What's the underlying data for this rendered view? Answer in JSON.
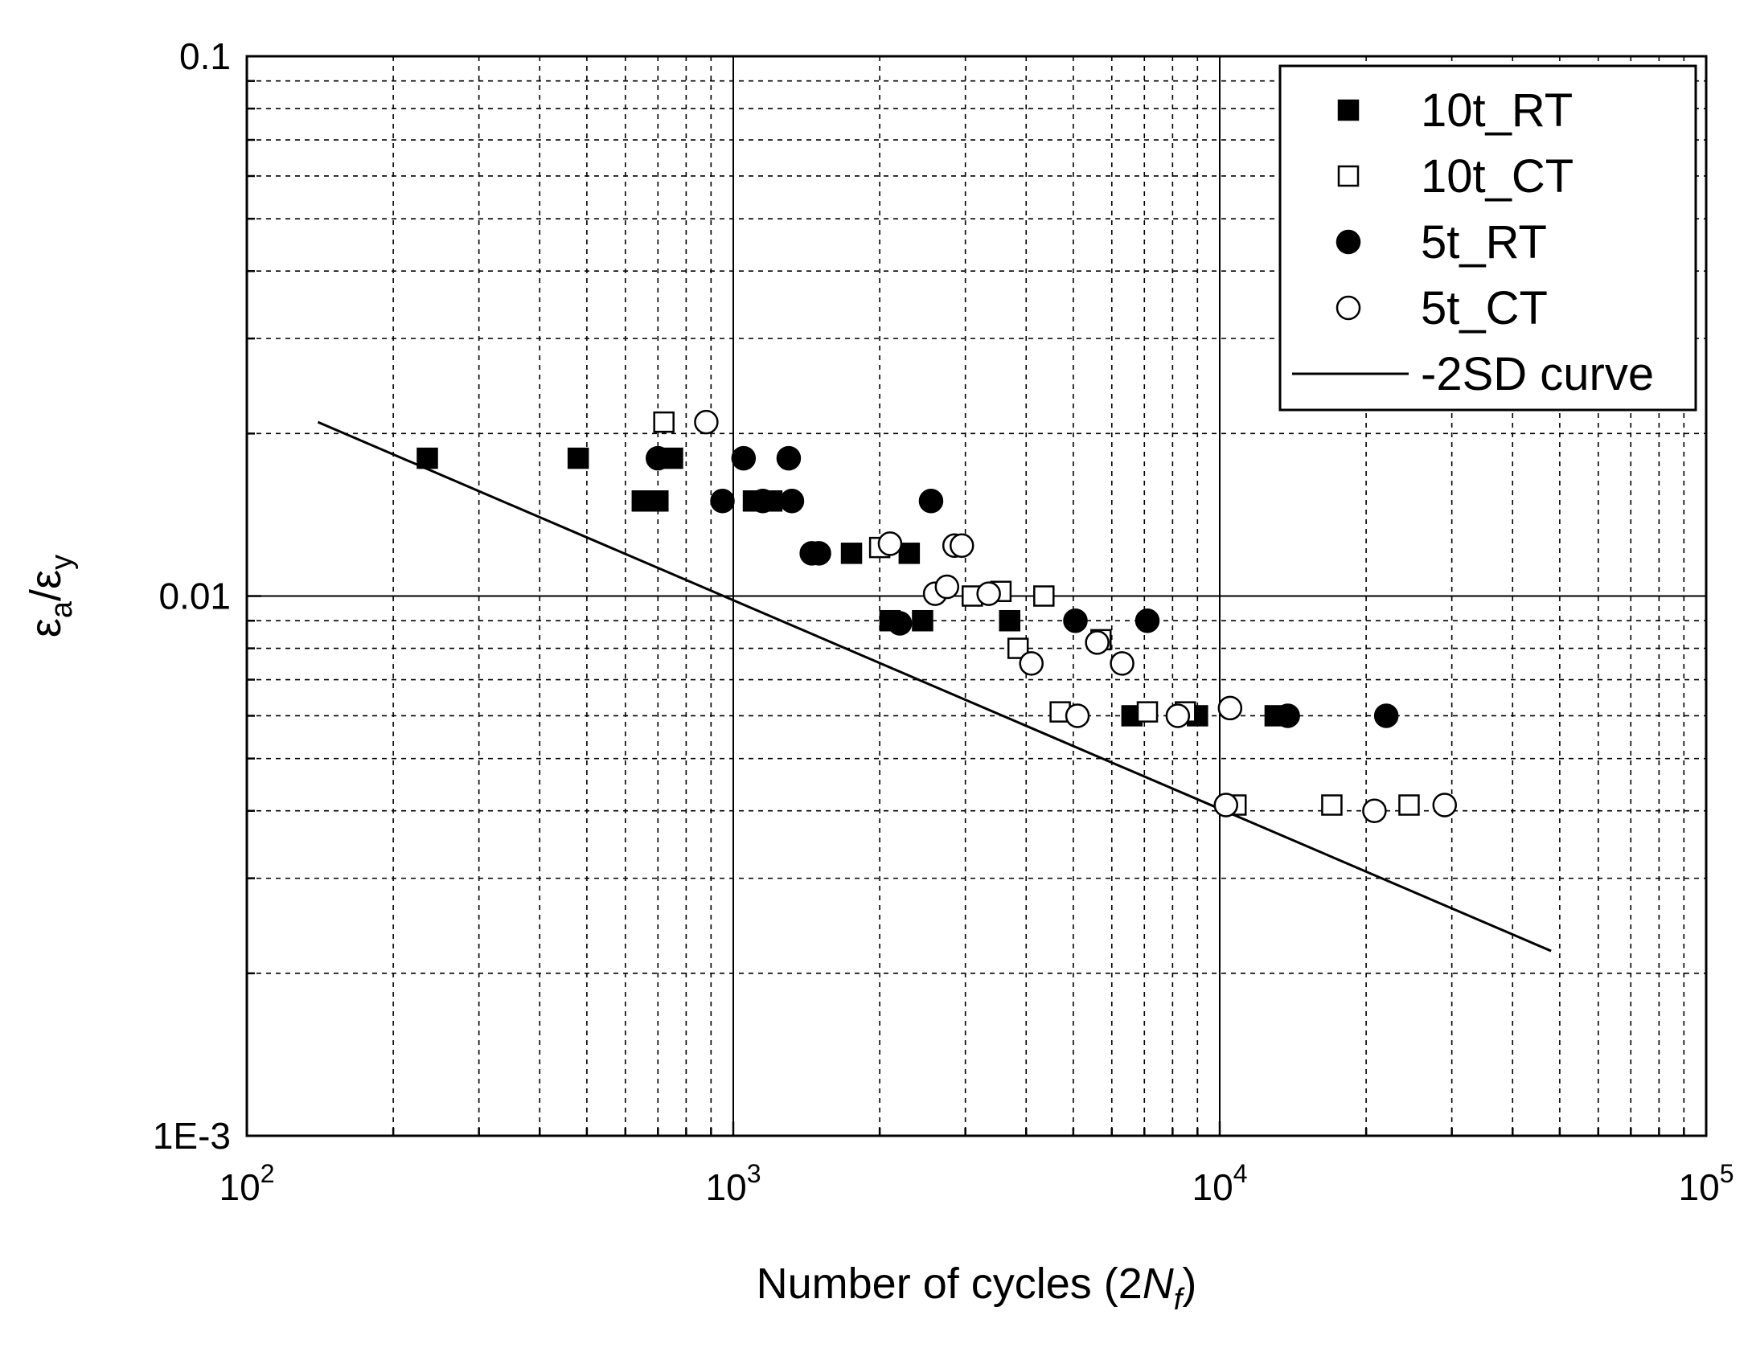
{
  "chart_data": {
    "type": "scatter",
    "title": "",
    "xscale": "log",
    "yscale": "log",
    "xlim": [
      100,
      100000
    ],
    "ylim": [
      0.001,
      0.1
    ],
    "xlabel": {
      "prefix": "Number of cycles (2",
      "italic": "N",
      "sub": "f",
      "suffix": ")"
    },
    "ylabel": {
      "base1": "ε",
      "sub1": "a",
      "sep": "/",
      "base2": "ε",
      "sub2": "y"
    },
    "x_ticks": [
      {
        "value": 100,
        "base": "10",
        "exp": "2"
      },
      {
        "value": 1000,
        "base": "10",
        "exp": "3"
      },
      {
        "value": 10000,
        "base": "10",
        "exp": "4"
      },
      {
        "value": 100000,
        "base": "10",
        "exp": "5"
      }
    ],
    "y_ticks": [
      {
        "value": 0.1,
        "label": "0.1"
      },
      {
        "value": 0.01,
        "label": "0.01"
      },
      {
        "value": 0.001,
        "label": "1E-3"
      }
    ],
    "grid": true,
    "legend_position": "top-right",
    "series": [
      {
        "name": "10t_RT",
        "marker": "square",
        "filled": true,
        "points": [
          [
            235,
            0.018
          ],
          [
            480,
            0.018
          ],
          [
            650,
            0.015
          ],
          [
            700,
            0.015
          ],
          [
            750,
            0.018
          ],
          [
            1100,
            0.015
          ],
          [
            1200,
            0.015
          ],
          [
            1750,
            0.012
          ],
          [
            2300,
            0.012
          ],
          [
            2100,
            0.009
          ],
          [
            2450,
            0.009
          ],
          [
            3700,
            0.009
          ],
          [
            6600,
            0.006
          ],
          [
            9000,
            0.006
          ],
          [
            13000,
            0.006
          ]
        ]
      },
      {
        "name": "10t_CT",
        "marker": "square",
        "filled": false,
        "points": [
          [
            720,
            0.021
          ],
          [
            2000,
            0.0123
          ],
          [
            3100,
            0.01
          ],
          [
            3550,
            0.0102
          ],
          [
            4350,
            0.01
          ],
          [
            3850,
            0.008
          ],
          [
            4700,
            0.0061
          ],
          [
            5700,
            0.0083
          ],
          [
            7100,
            0.0061
          ],
          [
            8500,
            0.0061
          ],
          [
            10800,
            0.0041
          ],
          [
            17000,
            0.0041
          ],
          [
            24500,
            0.0041
          ]
        ]
      },
      {
        "name": "5t_RT",
        "marker": "circle",
        "filled": true,
        "points": [
          [
            700,
            0.018
          ],
          [
            950,
            0.015
          ],
          [
            1050,
            0.018
          ],
          [
            1300,
            0.018
          ],
          [
            1150,
            0.015
          ],
          [
            1320,
            0.015
          ],
          [
            1450,
            0.012
          ],
          [
            1500,
            0.012
          ],
          [
            2550,
            0.015
          ],
          [
            2200,
            0.0089
          ],
          [
            5050,
            0.009
          ],
          [
            7100,
            0.009
          ],
          [
            13800,
            0.006
          ],
          [
            22000,
            0.006
          ]
        ]
      },
      {
        "name": "5t_CT",
        "marker": "circle",
        "filled": false,
        "points": [
          [
            880,
            0.021
          ],
          [
            2100,
            0.0125
          ],
          [
            2600,
            0.0101
          ],
          [
            2750,
            0.0104
          ],
          [
            2850,
            0.0124
          ],
          [
            2950,
            0.0124
          ],
          [
            3350,
            0.0101
          ],
          [
            4100,
            0.0075
          ],
          [
            5100,
            0.006
          ],
          [
            5600,
            0.0082
          ],
          [
            6300,
            0.0075
          ],
          [
            8200,
            0.006
          ],
          [
            10500,
            0.0062
          ],
          [
            10300,
            0.0041
          ],
          [
            20800,
            0.004
          ],
          [
            29000,
            0.0041
          ]
        ]
      }
    ],
    "reference_line": {
      "name": "-2SD curve",
      "points": [
        [
          140,
          0.021
        ],
        [
          48000,
          0.0022
        ]
      ]
    }
  }
}
